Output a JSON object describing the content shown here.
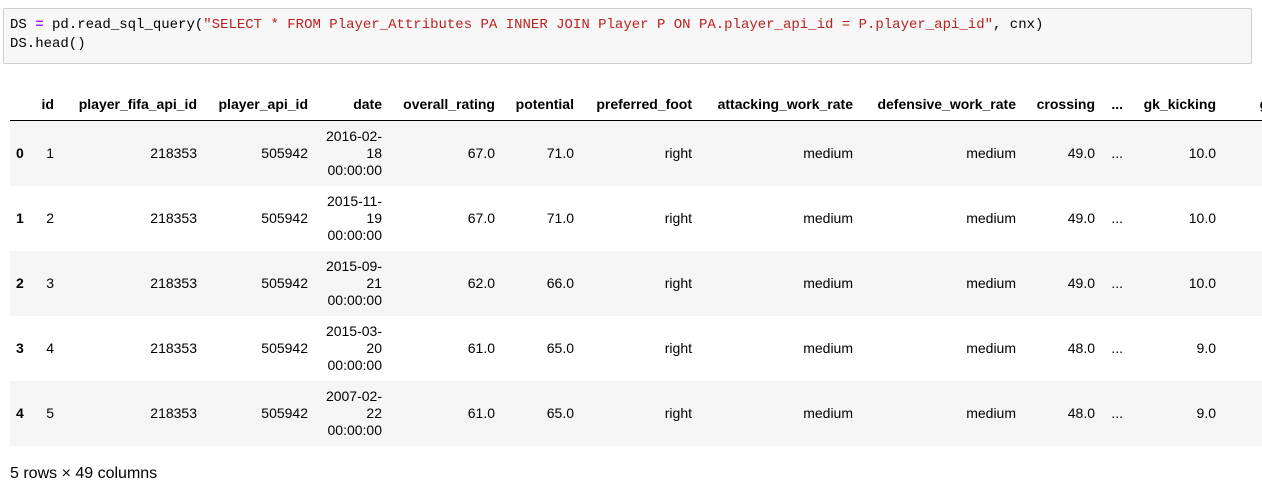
{
  "code": {
    "lines": [
      [
        {
          "text": "DS ",
          "style": "plain"
        },
        {
          "text": "=",
          "style": "op"
        },
        {
          "text": " pd.read_sql_query(",
          "style": "plain"
        },
        {
          "text": "\"SELECT * FROM Player_Attributes PA INNER JOIN Player P ON PA.player_api_id = P.player_api_id\"",
          "style": "str"
        },
        {
          "text": ", cnx)",
          "style": "plain"
        }
      ],
      [
        {
          "text": "DS.head()",
          "style": "plain"
        }
      ]
    ]
  },
  "table": {
    "header": [
      "id",
      "player_fifa_api_id",
      "player_api_id",
      "date",
      "overall_rating",
      "potential",
      "preferred_foot",
      "attacking_work_rate",
      "defensive_work_rate",
      "crossing",
      "...",
      "gk_kicking",
      "gk"
    ],
    "rows": [
      {
        "index": "0",
        "cells": [
          "1",
          "218353",
          "505942",
          "2016-02-18 00:00:00",
          "67.0",
          "71.0",
          "right",
          "medium",
          "medium",
          "49.0",
          "...",
          "10.0"
        ]
      },
      {
        "index": "1",
        "cells": [
          "2",
          "218353",
          "505942",
          "2015-11-19 00:00:00",
          "67.0",
          "71.0",
          "right",
          "medium",
          "medium",
          "49.0",
          "...",
          "10.0"
        ]
      },
      {
        "index": "2",
        "cells": [
          "3",
          "218353",
          "505942",
          "2015-09-21 00:00:00",
          "62.0",
          "66.0",
          "right",
          "medium",
          "medium",
          "49.0",
          "...",
          "10.0"
        ]
      },
      {
        "index": "3",
        "cells": [
          "4",
          "218353",
          "505942",
          "2015-03-20 00:00:00",
          "61.0",
          "65.0",
          "right",
          "medium",
          "medium",
          "48.0",
          "...",
          "9.0"
        ]
      },
      {
        "index": "4",
        "cells": [
          "5",
          "218353",
          "505942",
          "2007-02-22 00:00:00",
          "61.0",
          "65.0",
          "right",
          "medium",
          "medium",
          "48.0",
          "...",
          "9.0"
        ]
      }
    ],
    "footer": "5 rows × 49 columns"
  }
}
